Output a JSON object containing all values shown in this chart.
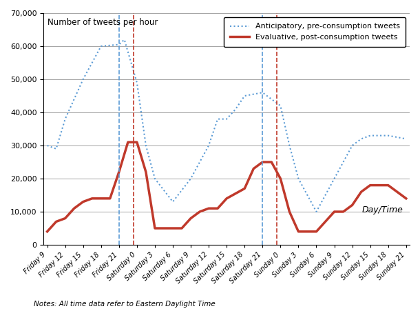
{
  "x_labels": [
    "Friday 9",
    "Friday 12",
    "Friday 15",
    "Friday 18",
    "Friday 21",
    "Saturday 0",
    "Saturday 3",
    "Saturday 6",
    "Saturday 9",
    "Saturday 12",
    "Saturday 15",
    "Saturday 18",
    "Saturday 21",
    "Sunday 0",
    "Sunday 3",
    "Sunday 6",
    "Sunday 9",
    "Sunday 12",
    "Sunday 15",
    "Sunday 18",
    "Sunday 21"
  ],
  "ant_x": [
    0,
    0.5,
    1,
    2,
    3,
    4,
    4.3,
    5,
    5.5,
    6,
    7,
    8,
    9,
    9.5,
    10,
    10.5,
    11,
    12,
    13,
    13.5,
    14,
    15,
    16,
    17,
    17.5,
    18,
    19,
    20
  ],
  "ant_y": [
    30000,
    29000,
    38000,
    50000,
    60000,
    60500,
    62000,
    49000,
    30000,
    20000,
    13000,
    20000,
    30000,
    38000,
    38000,
    41000,
    45000,
    46000,
    42000,
    30000,
    20000,
    10000,
    20000,
    30000,
    32000,
    33000,
    33000,
    32000
  ],
  "eva_x": [
    0,
    0.5,
    1,
    1.5,
    2,
    2.5,
    3.5,
    4,
    4.5,
    5,
    5.5,
    6,
    7,
    7.5,
    8,
    8.5,
    9,
    9.5,
    10,
    11,
    11.5,
    12,
    12.5,
    13,
    13.5,
    14,
    15,
    16,
    16.5,
    17,
    17.5,
    18,
    19,
    20
  ],
  "eva_y": [
    4000,
    7000,
    8000,
    11000,
    13000,
    14000,
    14000,
    22000,
    31000,
    31000,
    22000,
    5000,
    5000,
    5000,
    8000,
    10000,
    11000,
    11000,
    14000,
    17000,
    23000,
    25000,
    25000,
    20000,
    10000,
    4000,
    4000,
    10000,
    10000,
    12000,
    16000,
    18000,
    18000,
    14000
  ],
  "blue_vlines": [
    4.0,
    12.0
  ],
  "red_vlines": [
    4.8,
    12.8
  ],
  "ylim": [
    0,
    70000
  ],
  "yticks": [
    0,
    10000,
    20000,
    30000,
    40000,
    50000,
    60000,
    70000
  ],
  "ylabel_text": "Number of tweets per hour",
  "xlabel_text": "Day/Time",
  "notes_text": "Notes: All time data refer to Eastern Daylight Time",
  "legend_anticipatory": "Anticipatory, pre-consumption tweets",
  "legend_evaluative": "Evaluative, post-consumption tweets",
  "anticipatory_color": "#5B9BD5",
  "evaluative_color": "#C0392B",
  "background_color": "#FFFFFF"
}
